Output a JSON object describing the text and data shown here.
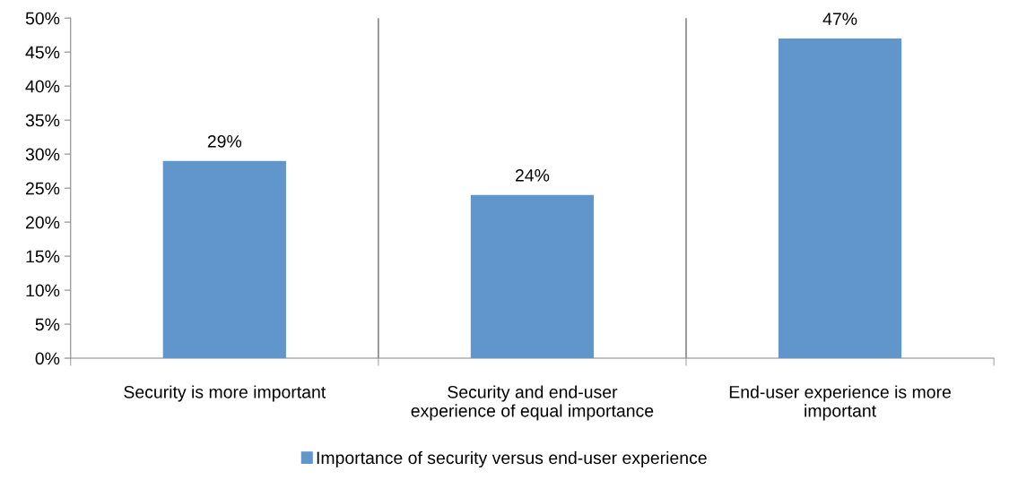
{
  "chart_data": {
    "type": "bar",
    "categories": [
      "Security is more important",
      "Security and end-user experience of equal importance",
      "End-user experience is more important"
    ],
    "series": [
      {
        "name": "Importance of security versus end-user experience",
        "color": "#6096cb",
        "values": [
          29,
          24,
          47
        ],
        "value_labels": [
          "29%",
          "24%",
          "47%"
        ]
      }
    ],
    "ylim": [
      0,
      50
    ],
    "yticks": [
      {
        "value": 0,
        "label": "0%"
      },
      {
        "value": 5,
        "label": "5%"
      },
      {
        "value": 10,
        "label": "10%"
      },
      {
        "value": 15,
        "label": "15%"
      },
      {
        "value": 20,
        "label": "20%"
      },
      {
        "value": 25,
        "label": "25%"
      },
      {
        "value": 30,
        "label": "30%"
      },
      {
        "value": 35,
        "label": "35%"
      },
      {
        "value": 40,
        "label": "40%"
      },
      {
        "value": 45,
        "label": "45%"
      },
      {
        "value": 50,
        "label": "50%"
      }
    ],
    "grid": "x",
    "legend": "bottom"
  }
}
